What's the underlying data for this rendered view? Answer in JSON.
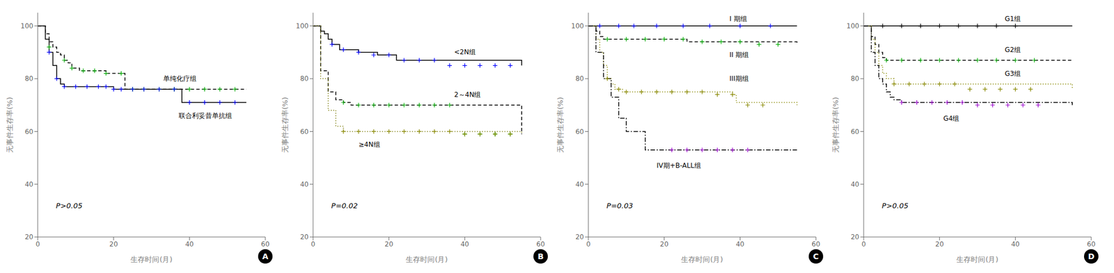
{
  "chart_data": [
    {
      "type": "line",
      "annotations": [
        "P>0.05",
        "A"
      ],
      "y_label": "无事件生存率(%)",
      "x_label": "生存时间(月)",
      "ylim": [
        20,
        105
      ],
      "yticks": [
        20,
        40,
        60,
        80,
        100
      ],
      "xlim": [
        0,
        60
      ],
      "xticks": [
        0,
        20,
        40,
        60
      ],
      "grid": false,
      "series": [
        {
          "name": "单纯化疗组",
          "type": "step",
          "color": "#000000",
          "line_style": "dashed",
          "x": [
            0,
            2,
            3,
            4,
            5,
            6,
            7,
            8,
            9,
            10,
            11,
            13,
            15,
            18,
            22,
            23,
            33,
            34,
            36,
            50,
            55
          ],
          "values": [
            100,
            97,
            94,
            92,
            90,
            89,
            87,
            86,
            84,
            84,
            83,
            83,
            83,
            82,
            82,
            76,
            76,
            76,
            76,
            76,
            76
          ],
          "censored": {
            "marker": "plus",
            "color": "#00aa00",
            "x": [
              3,
              7,
              9,
              12,
              15,
              18,
              22,
              25,
              28,
              32,
              36,
              40,
              44,
              48,
              52
            ],
            "values": [
              92,
              87,
              84,
              83,
              83,
              82,
              82,
              76,
              76,
              76,
              76,
              76,
              76,
              76,
              76
            ]
          }
        },
        {
          "name": "联合利妥昔单抗组",
          "type": "step",
          "color": "#000000",
          "line_style": "solid",
          "x": [
            0,
            2,
            3,
            4,
            5,
            6,
            7,
            8,
            9,
            10,
            12,
            15,
            20,
            22,
            38,
            40,
            55
          ],
          "values": [
            100,
            95,
            90,
            85,
            80,
            78,
            77,
            77,
            77,
            77,
            77,
            77,
            76,
            76,
            71,
            71,
            71
          ],
          "censored": {
            "marker": "plus",
            "color": "#0000ff",
            "x": [
              3,
              5,
              7,
              10,
              13,
              16,
              18,
              20,
              22,
              25,
              28,
              32,
              36,
              40,
              44,
              48,
              52
            ],
            "values": [
              90,
              80,
              77,
              77,
              77,
              77,
              77,
              76,
              76,
              76,
              76,
              76,
              76,
              71,
              71,
              71,
              71
            ]
          }
        }
      ]
    },
    {
      "type": "line",
      "annotations": [
        "P=0.02",
        "B"
      ],
      "y_label": "无事件生存率(%)",
      "x_label": "生存时间(月)",
      "ylim": [
        20,
        105
      ],
      "yticks": [
        20,
        40,
        60,
        80,
        100
      ],
      "xlim": [
        0,
        60
      ],
      "xticks": [
        0,
        20,
        40,
        60
      ],
      "grid": false,
      "series": [
        {
          "name": "<2N组",
          "type": "step",
          "color": "#000000",
          "line_style": "solid",
          "x": [
            0,
            2,
            3,
            4,
            5,
            7,
            9,
            12,
            17,
            22,
            55
          ],
          "values": [
            100,
            98,
            97,
            95,
            93,
            91,
            91,
            90,
            89,
            87,
            85
          ],
          "censored": {
            "marker": "plus",
            "color": "#0000ff",
            "x": [
              5,
              8,
              12,
              16,
              20,
              24,
              28,
              32,
              36,
              40,
              44,
              48,
              52
            ],
            "values": [
              93,
              91,
              90,
              89,
              89,
              87,
              87,
              87,
              85,
              85,
              85,
              85,
              85
            ]
          }
        },
        {
          "name": "2～4N组",
          "type": "step",
          "color": "#000000",
          "line_style": "dashed",
          "x": [
            0,
            2,
            4,
            6,
            8,
            10,
            37,
            55
          ],
          "values": [
            100,
            83,
            75,
            72,
            71,
            70,
            70,
            59
          ],
          "censored": {
            "marker": "plus",
            "color": "#00aa00",
            "x": [
              8,
              12,
              16,
              20,
              24,
              28,
              32,
              36,
              40,
              44,
              48,
              52
            ],
            "values": [
              71,
              70,
              70,
              70,
              70,
              70,
              70,
              70,
              59,
              59,
              59,
              59
            ]
          }
        },
        {
          "name": "≥4N组",
          "type": "step",
          "color": "#777700",
          "line_style": "dotted",
          "x": [
            0,
            2,
            4,
            6,
            8,
            10,
            55
          ],
          "values": [
            100,
            80,
            68,
            62,
            60,
            60,
            59
          ],
          "censored": {
            "marker": "plus",
            "color": "#888800",
            "x": [
              8,
              12,
              16,
              20,
              24,
              28,
              32,
              36,
              40,
              44,
              48,
              52
            ],
            "values": [
              60,
              60,
              60,
              60,
              60,
              60,
              60,
              60,
              59,
              59,
              59,
              59
            ]
          }
        }
      ]
    },
    {
      "type": "line",
      "annotations": [
        "P=0.03",
        "C"
      ],
      "y_label": "无事件生存率(%)",
      "x_label": "生存时间(月)",
      "ylim": [
        20,
        105
      ],
      "yticks": [
        20,
        40,
        60,
        80,
        100
      ],
      "xlim": [
        0,
        60
      ],
      "xticks": [
        0,
        20,
        40,
        60
      ],
      "grid": false,
      "series": [
        {
          "name": "I 期组",
          "type": "step",
          "color": "#000000",
          "line_style": "solid",
          "x": [
            0,
            55
          ],
          "values": [
            100,
            100
          ],
          "censored": {
            "marker": "plus",
            "color": "#0000ff",
            "x": [
              3,
              8,
              12,
              18,
              25,
              32,
              40,
              48
            ],
            "values": [
              100,
              100,
              100,
              100,
              100,
              100,
              100,
              100
            ]
          }
        },
        {
          "name": "II 期组",
          "type": "step",
          "color": "#000000",
          "line_style": "dashed",
          "x": [
            0,
            2,
            3,
            4,
            25,
            26,
            55
          ],
          "values": [
            100,
            98,
            96,
            95,
            95,
            94,
            93
          ],
          "censored": {
            "marker": "plus",
            "color": "#00aa00",
            "x": [
              5,
              10,
              15,
              20,
              25,
              30,
              35,
              40,
              45,
              50
            ],
            "values": [
              95,
              95,
              95,
              95,
              95,
              94,
              94,
              94,
              93,
              93
            ]
          }
        },
        {
          "name": "III期组",
          "type": "step",
          "color": "#888800",
          "line_style": "dotted",
          "x": [
            0,
            2,
            3,
            4,
            5,
            6,
            7,
            8,
            9,
            10,
            38,
            39,
            55
          ],
          "values": [
            100,
            95,
            90,
            85,
            80,
            78,
            76,
            76,
            75,
            75,
            74,
            71,
            70
          ],
          "censored": {
            "marker": "plus",
            "color": "#888800",
            "x": [
              5,
              8,
              10,
              14,
              18,
              22,
              26,
              30,
              34,
              38,
              42,
              46
            ],
            "values": [
              80,
              76,
              75,
              75,
              75,
              75,
              75,
              75,
              74,
              74,
              70,
              70
            ]
          }
        },
        {
          "name": "IV期+B-ALL组",
          "type": "step",
          "color": "#000000",
          "line_style": "dashdot",
          "x": [
            0,
            2,
            4,
            6,
            8,
            10,
            12,
            15,
            20,
            22,
            55
          ],
          "values": [
            100,
            90,
            80,
            73,
            65,
            60,
            60,
            53,
            53,
            53,
            53
          ],
          "censored": {
            "marker": "plus",
            "color": "#9900cc",
            "x": [
              22,
              26,
              30,
              34,
              38,
              42
            ],
            "values": [
              53,
              53,
              53,
              53,
              53,
              53
            ]
          }
        }
      ]
    },
    {
      "type": "line",
      "annotations": [
        "P>0.05",
        "D"
      ],
      "y_label": "无事件生存率(%)",
      "x_label": "生存时间(月)",
      "ylim": [
        20,
        105
      ],
      "yticks": [
        20,
        40,
        60,
        80,
        100
      ],
      "xlim": [
        0,
        60
      ],
      "xticks": [
        0,
        20,
        40,
        60
      ],
      "grid": false,
      "series": [
        {
          "name": "G1组",
          "type": "step",
          "color": "#000000",
          "line_style": "solid",
          "x": [
            0,
            2,
            55
          ],
          "values": [
            100,
            100,
            100
          ],
          "censored": {
            "marker": "plus",
            "color": "#000000",
            "x": [
              5,
              10,
              15,
              20,
              25,
              30,
              35,
              40
            ],
            "values": [
              100,
              100,
              100,
              100,
              100,
              100,
              100,
              100
            ]
          }
        },
        {
          "name": "G2组",
          "type": "step",
          "color": "#000000",
          "line_style": "dashed",
          "x": [
            0,
            2,
            3,
            4,
            5,
            6,
            55
          ],
          "values": [
            100,
            96,
            93,
            90,
            88,
            87,
            87
          ],
          "censored": {
            "marker": "plus",
            "color": "#00aa00",
            "x": [
              6,
              10,
              15,
              20,
              25,
              30,
              35,
              40,
              45
            ],
            "values": [
              87,
              87,
              87,
              87,
              87,
              87,
              87,
              87,
              87
            ]
          }
        },
        {
          "name": "G3组",
          "type": "step",
          "color": "#888800",
          "line_style": "dotted",
          "x": [
            0,
            2,
            3,
            4,
            5,
            6,
            8,
            55
          ],
          "values": [
            100,
            95,
            90,
            85,
            82,
            80,
            78,
            76
          ],
          "censored": {
            "marker": "plus",
            "color": "#888800",
            "x": [
              8,
              12,
              16,
              20,
              24,
              28,
              32,
              36,
              40,
              44
            ],
            "values": [
              78,
              78,
              78,
              78,
              78,
              76,
              76,
              76,
              76,
              76
            ]
          }
        },
        {
          "name": "G4组",
          "type": "step",
          "color": "#000000",
          "line_style": "dashdot",
          "x": [
            0,
            2,
            3,
            4,
            5,
            6,
            7,
            8,
            10,
            55
          ],
          "values": [
            100,
            90,
            85,
            80,
            78,
            75,
            73,
            72,
            71,
            70
          ],
          "censored": {
            "marker": "plus",
            "color": "#9900cc",
            "x": [
              10,
              14,
              18,
              22,
              26,
              30,
              34,
              38,
              42,
              46
            ],
            "values": [
              71,
              71,
              71,
              71,
              71,
              70,
              70,
              70,
              70,
              70
            ]
          }
        }
      ]
    }
  ]
}
